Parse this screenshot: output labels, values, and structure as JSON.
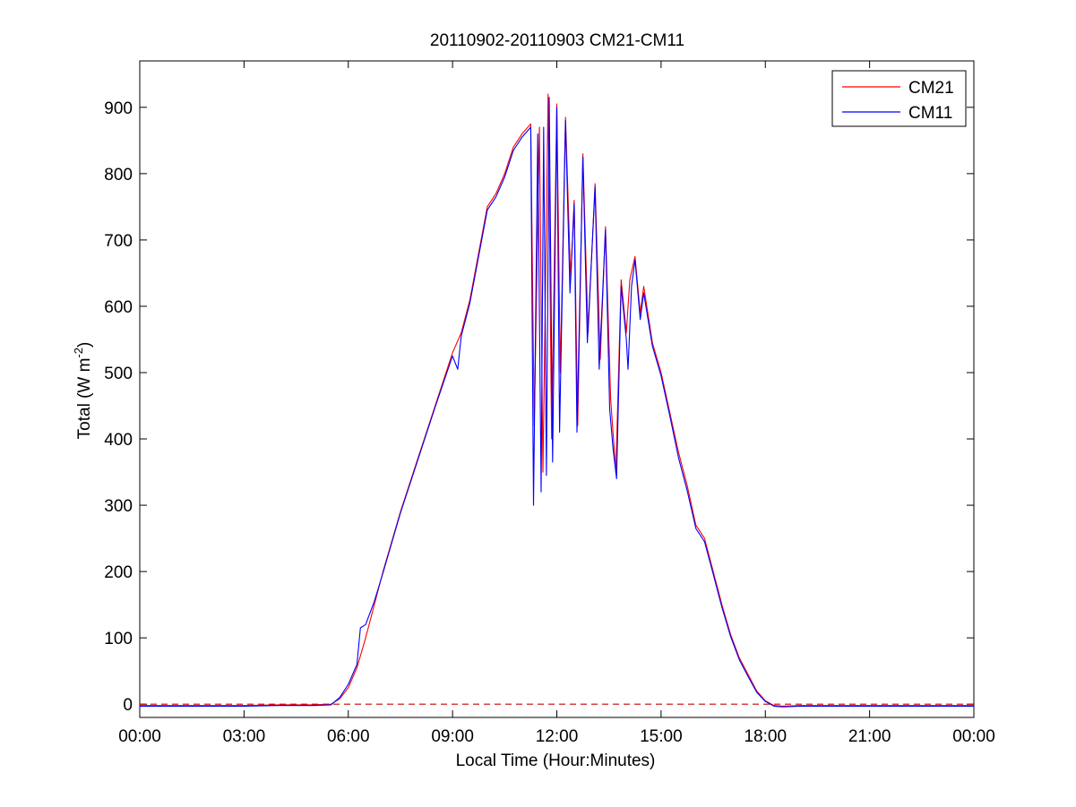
{
  "chart_data": {
    "type": "line",
    "title": "20110902-20110903 CM21-CM11",
    "xlabel": "Local Time (Hour:Minutes)",
    "ylabel": {
      "main": "Total (W m",
      "sup": "-2",
      "tail": ")"
    },
    "xlim": [
      0,
      24
    ],
    "ylim": [
      -20,
      970
    ],
    "x_ticks": [
      0,
      3,
      6,
      9,
      12,
      15,
      18,
      21,
      24
    ],
    "x_tick_labels": [
      "00:00",
      "03:00",
      "06:00",
      "09:00",
      "12:00",
      "15:00",
      "18:00",
      "21:00",
      "00:00"
    ],
    "y_ticks": [
      0,
      100,
      200,
      300,
      400,
      500,
      600,
      700,
      800,
      900
    ],
    "y_tick_labels": [
      "0",
      "100",
      "200",
      "300",
      "400",
      "500",
      "600",
      "700",
      "800",
      "900"
    ],
    "zero_reference_line": {
      "y": 0,
      "style": "dashed",
      "color": "#cc0000"
    },
    "legend": {
      "position": "top-right"
    },
    "series": [
      {
        "name": "CM21",
        "color": "#ff0000",
        "points": [
          [
            0,
            -2
          ],
          [
            1,
            -2
          ],
          [
            2,
            -2
          ],
          [
            3,
            -2
          ],
          [
            4,
            -1
          ],
          [
            5,
            -1
          ],
          [
            5.5,
            0
          ],
          [
            5.75,
            8
          ],
          [
            6,
            25
          ],
          [
            6.25,
            55
          ],
          [
            6.5,
            100
          ],
          [
            6.75,
            150
          ],
          [
            7,
            200
          ],
          [
            7.5,
            290
          ],
          [
            8,
            370
          ],
          [
            8.5,
            450
          ],
          [
            9,
            530
          ],
          [
            9.25,
            560
          ],
          [
            9.5,
            610
          ],
          [
            9.75,
            680
          ],
          [
            10,
            750
          ],
          [
            10.25,
            770
          ],
          [
            10.5,
            800
          ],
          [
            10.75,
            840
          ],
          [
            11,
            860
          ],
          [
            11.25,
            875
          ],
          [
            11.35,
            420
          ],
          [
            11.5,
            870
          ],
          [
            11.6,
            350
          ],
          [
            11.75,
            920
          ],
          [
            11.85,
            400
          ],
          [
            12,
            905
          ],
          [
            12.1,
            500
          ],
          [
            12.25,
            885
          ],
          [
            12.4,
            640
          ],
          [
            12.5,
            760
          ],
          [
            12.6,
            420
          ],
          [
            12.75,
            830
          ],
          [
            12.9,
            560
          ],
          [
            13.1,
            785
          ],
          [
            13.25,
            520
          ],
          [
            13.4,
            720
          ],
          [
            13.55,
            460
          ],
          [
            13.7,
            350
          ],
          [
            13.85,
            640
          ],
          [
            14,
            560
          ],
          [
            14.1,
            640
          ],
          [
            14.25,
            675
          ],
          [
            14.4,
            590
          ],
          [
            14.5,
            630
          ],
          [
            14.75,
            545
          ],
          [
            15,
            500
          ],
          [
            15.25,
            440
          ],
          [
            15.5,
            380
          ],
          [
            15.75,
            330
          ],
          [
            16,
            270
          ],
          [
            16.25,
            250
          ],
          [
            16.5,
            200
          ],
          [
            16.75,
            150
          ],
          [
            17,
            105
          ],
          [
            17.25,
            70
          ],
          [
            17.5,
            45
          ],
          [
            17.75,
            20
          ],
          [
            18,
            5
          ],
          [
            18.25,
            -2
          ],
          [
            18.5,
            -3
          ],
          [
            19,
            -2
          ],
          [
            20,
            -2
          ],
          [
            21,
            -2
          ],
          [
            22,
            -2
          ],
          [
            23,
            -2
          ],
          [
            24,
            -2
          ]
        ]
      },
      {
        "name": "CM11",
        "color": "#0000ff",
        "points": [
          [
            0,
            -3
          ],
          [
            1,
            -3
          ],
          [
            2,
            -3
          ],
          [
            3,
            -3
          ],
          [
            4,
            -2
          ],
          [
            5,
            -2
          ],
          [
            5.5,
            -1
          ],
          [
            5.75,
            10
          ],
          [
            6,
            30
          ],
          [
            6.25,
            60
          ],
          [
            6.35,
            115
          ],
          [
            6.5,
            120
          ],
          [
            6.75,
            155
          ],
          [
            7,
            198
          ],
          [
            7.5,
            288
          ],
          [
            8,
            368
          ],
          [
            8.5,
            448
          ],
          [
            9,
            525
          ],
          [
            9.15,
            505
          ],
          [
            9.25,
            555
          ],
          [
            9.5,
            605
          ],
          [
            9.75,
            675
          ],
          [
            10,
            745
          ],
          [
            10.25,
            765
          ],
          [
            10.5,
            795
          ],
          [
            10.75,
            835
          ],
          [
            11,
            855
          ],
          [
            11.25,
            870
          ],
          [
            11.33,
            300
          ],
          [
            11.45,
            860
          ],
          [
            11.55,
            320
          ],
          [
            11.62,
            870
          ],
          [
            11.7,
            345
          ],
          [
            11.78,
            915
          ],
          [
            11.88,
            365
          ],
          [
            12,
            900
          ],
          [
            12.08,
            410
          ],
          [
            12.25,
            880
          ],
          [
            12.38,
            620
          ],
          [
            12.5,
            755
          ],
          [
            12.58,
            410
          ],
          [
            12.75,
            825
          ],
          [
            12.88,
            545
          ],
          [
            13.1,
            780
          ],
          [
            13.22,
            505
          ],
          [
            13.4,
            715
          ],
          [
            13.52,
            445
          ],
          [
            13.62,
            385
          ],
          [
            13.72,
            340
          ],
          [
            13.85,
            630
          ],
          [
            14,
            550
          ],
          [
            14.05,
            505
          ],
          [
            14.15,
            630
          ],
          [
            14.25,
            670
          ],
          [
            14.4,
            580
          ],
          [
            14.5,
            620
          ],
          [
            14.75,
            540
          ],
          [
            15,
            495
          ],
          [
            15.25,
            435
          ],
          [
            15.5,
            372
          ],
          [
            15.75,
            322
          ],
          [
            16,
            265
          ],
          [
            16.25,
            245
          ],
          [
            16.5,
            196
          ],
          [
            16.75,
            146
          ],
          [
            17,
            102
          ],
          [
            17.25,
            67
          ],
          [
            17.5,
            42
          ],
          [
            17.75,
            18
          ],
          [
            18,
            4
          ],
          [
            18.25,
            -3
          ],
          [
            18.5,
            -4
          ],
          [
            19,
            -3
          ],
          [
            20,
            -3
          ],
          [
            21,
            -3
          ],
          [
            22,
            -3
          ],
          [
            23,
            -3
          ],
          [
            24,
            -3
          ]
        ]
      }
    ]
  }
}
